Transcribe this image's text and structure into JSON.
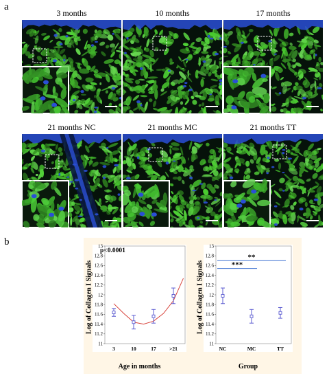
{
  "panel_a_label": "a",
  "panel_b_label": "b",
  "micrographs": [
    {
      "title": "3 months"
    },
    {
      "title": "10 months"
    },
    {
      "title": "17 months"
    },
    {
      "title": "21 months NC"
    },
    {
      "title": "21 months MC"
    },
    {
      "title": "21 months TT"
    }
  ],
  "colors": {
    "collagen": "#3fae2a",
    "nuclei": "#2a4fd6",
    "background": "#06120a",
    "fit_curve": "#d8443c",
    "error_bar": "#5a5ad0",
    "sig_line": "#3a6fd0",
    "panel_bg": "#fff6e6"
  },
  "chart_data": [
    {
      "type": "scatter",
      "title": "",
      "ylabel": "Log of Collagen I Signals",
      "xlabel": "Age in months",
      "annotation": "p<0.0001",
      "categories": [
        "3",
        "10",
        "17",
        ">21"
      ],
      "ylim": [
        11,
        13
      ],
      "yticks": [
        "11",
        "11.2",
        "11.4",
        "11.6",
        "11.8",
        "12",
        "12.2",
        "12.4",
        "12.6",
        "12.8",
        "13"
      ],
      "means": [
        11.64,
        11.44,
        11.56,
        11.98
      ],
      "lower": [
        11.56,
        11.3,
        11.42,
        11.82
      ],
      "upper": [
        11.72,
        11.58,
        11.7,
        12.14
      ],
      "fit": {
        "type": "quadratic",
        "x": [
          0,
          0.5,
          1,
          1.5,
          2,
          2.5,
          3,
          3.5
        ],
        "y": [
          11.82,
          11.62,
          11.44,
          11.4,
          11.46,
          11.62,
          11.88,
          12.34
        ]
      },
      "grid": false
    },
    {
      "type": "scatter",
      "title": "",
      "ylabel": "Log of Collagen I Signals",
      "xlabel": "Group",
      "categories": [
        "NC",
        "MC",
        "TT"
      ],
      "ylim": [
        11,
        13
      ],
      "yticks": [
        "11",
        "11.2",
        "11.4",
        "11.6",
        "11.8",
        "12",
        "12.2",
        "12.4",
        "12.6",
        "12.8",
        "13"
      ],
      "means": [
        11.98,
        11.56,
        11.63
      ],
      "lower": [
        11.82,
        11.42,
        11.52
      ],
      "upper": [
        12.14,
        11.7,
        11.74
      ],
      "significance": [
        {
          "from": "NC",
          "to": "TT",
          "label": "**",
          "y": 12.7
        },
        {
          "from": "NC",
          "to": "MC",
          "label": "***",
          "y": 12.54
        }
      ],
      "grid": false
    }
  ]
}
